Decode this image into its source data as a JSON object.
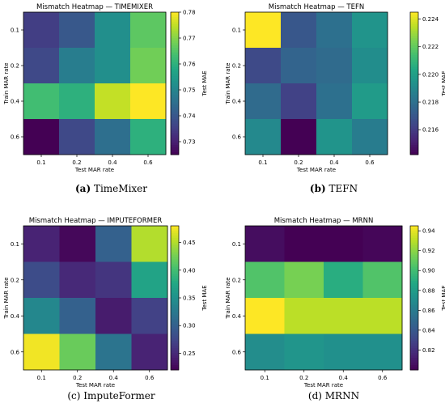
{
  "chart_data": [
    {
      "type": "heatmap",
      "title": "Mismatch Heatmap — TIMEMIXER",
      "xlabel": "Test MAR rate",
      "ylabel": "Train MAR rate",
      "x_categories": [
        "0.1",
        "0.2",
        "0.4",
        "0.6"
      ],
      "y_categories": [
        "0.1",
        "0.2",
        "0.4",
        "0.6"
      ],
      "values": [
        [
          0.735,
          0.74,
          0.752,
          0.766
        ],
        [
          0.737,
          0.748,
          0.752,
          0.768
        ],
        [
          0.763,
          0.76,
          0.775,
          0.78
        ],
        [
          0.725,
          0.737,
          0.745,
          0.76
        ]
      ],
      "colorbar_label": "Test MAE",
      "colorbar_range": [
        0.725,
        0.78
      ],
      "colorbar_ticks": [
        "0.73",
        "0.74",
        "0.75",
        "0.76",
        "0.77",
        "0.78"
      ],
      "colorbar_tick_values": [
        0.73,
        0.74,
        0.75,
        0.76,
        0.77,
        0.78
      ],
      "colormap": "viridis",
      "caption_letter": "(a)",
      "caption_text": "TimeMixer"
    },
    {
      "type": "heatmap",
      "title": "Mismatch Heatmap — TEFN",
      "xlabel": "Test MAR rate",
      "ylabel": "Train MAR rate",
      "x_categories": [
        "0.1",
        "0.2",
        "0.4",
        "0.6"
      ],
      "y_categories": [
        "0.1",
        "0.2",
        "0.4",
        "0.6"
      ],
      "values": [
        [
          0.2245,
          0.217,
          0.218,
          0.2195
        ],
        [
          0.2165,
          0.2175,
          0.2178,
          0.2192
        ],
        [
          0.2178,
          0.2162,
          0.218,
          0.2198
        ],
        [
          0.219,
          0.2142,
          0.2195,
          0.2185
        ]
      ],
      "colorbar_label": "Test MAE",
      "colorbar_range": [
        0.2142,
        0.2245
      ],
      "colorbar_ticks": [
        "0.216",
        "0.218",
        "0.220",
        "0.222",
        "0.224"
      ],
      "colorbar_tick_values": [
        0.216,
        0.218,
        0.22,
        0.222,
        0.224
      ],
      "colormap": "viridis",
      "caption_letter": "(b)",
      "caption_text": "TEFN"
    },
    {
      "type": "heatmap",
      "title": "Mismatch Heatmap — IMPUTEFORMER",
      "xlabel": "Test MAR rate",
      "ylabel": "Train MAR rate",
      "x_categories": [
        "0.1",
        "0.2",
        "0.4",
        "0.6"
      ],
      "y_categories": [
        "0.1",
        "0.2",
        "0.4",
        "0.6"
      ],
      "values": [
        [
          0.245,
          0.225,
          0.3,
          0.45
        ],
        [
          0.28,
          0.25,
          0.26,
          0.37
        ],
        [
          0.34,
          0.3,
          0.24,
          0.27
        ],
        [
          0.475,
          0.42,
          0.32,
          0.245
        ]
      ],
      "colorbar_label": "Test MAE",
      "colorbar_range": [
        0.22,
        0.48
      ],
      "colorbar_ticks": [
        "0.25",
        "0.30",
        "0.35",
        "0.40",
        "0.45"
      ],
      "colorbar_tick_values": [
        0.25,
        0.3,
        0.35,
        0.4,
        0.45
      ],
      "colormap": "viridis",
      "caption_letter": "(c)",
      "caption_text": "ImputeFormer"
    },
    {
      "type": "heatmap",
      "title": "Mismatch Heatmap — MRNN",
      "xlabel": "Test MAR rate",
      "ylabel": "Train MAR rate",
      "x_categories": [
        "0.1",
        "0.2",
        "0.4",
        "0.6"
      ],
      "y_categories": [
        "0.1",
        "0.2",
        "0.4",
        "0.6"
      ],
      "values": [
        [
          0.805,
          0.8,
          0.8,
          0.802
        ],
        [
          0.905,
          0.915,
          0.89,
          0.905
        ],
        [
          0.945,
          0.93,
          0.93,
          0.93
        ],
        [
          0.87,
          0.875,
          0.872,
          0.872
        ]
      ],
      "colorbar_label": "Test MAE",
      "colorbar_range": [
        0.8,
        0.945
      ],
      "colorbar_ticks": [
        "0.82",
        "0.84",
        "0.86",
        "0.88",
        "0.90",
        "0.92",
        "0.94"
      ],
      "colorbar_tick_values": [
        0.82,
        0.84,
        0.86,
        0.88,
        0.9,
        0.92,
        0.94
      ],
      "colormap": "viridis",
      "caption_letter": "(d)",
      "caption_text": "MRNN"
    }
  ]
}
